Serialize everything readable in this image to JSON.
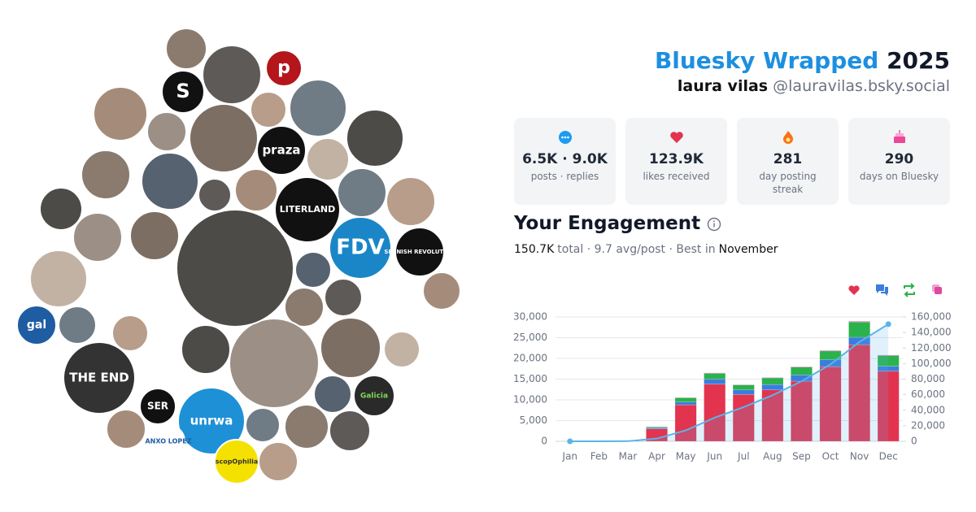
{
  "header": {
    "title": "Bluesky Wrapped",
    "year": "2025",
    "name": "laura vilas",
    "handle": "@lauravilas.bsky.social"
  },
  "stats": [
    {
      "value": "6.5K · 9.0K",
      "label": "posts · replies"
    },
    {
      "value": "123.9K",
      "label": "likes received"
    },
    {
      "value": "281",
      "label": "day posting streak"
    },
    {
      "value": "290",
      "label": "days on Bluesky"
    }
  ],
  "engagement": {
    "title": "Your Engagement",
    "subtitle": [
      "150.7K",
      "total · 9.7 avg/post · Best in",
      "November"
    ]
  },
  "avatar_labels": [
    "S",
    "p",
    "praza",
    "LITERLAND",
    "FDV",
    "SPANISH REVOLUTION",
    "gal",
    "THE END",
    "SER",
    "unrwa",
    "ANXO LOPEZ",
    "Galicia",
    "scopOphilia"
  ],
  "chart_data": {
    "type": "bar",
    "categories": [
      "Jan",
      "Feb",
      "Mar",
      "Apr",
      "May",
      "Jun",
      "Jul",
      "Aug",
      "Sep",
      "Oct",
      "Nov",
      "Dec"
    ],
    "series": [
      {
        "color": "#e2344f",
        "values": [
          0,
          0,
          150,
          3000,
          8800,
          13800,
          11300,
          12400,
          14500,
          18000,
          23300,
          16900
        ]
      },
      {
        "color": "#3b7ddd",
        "values": [
          0,
          0,
          30,
          300,
          700,
          1200,
          1100,
          1300,
          1500,
          1700,
          1800,
          1200
        ]
      },
      {
        "color": "#2bb24c",
        "values": [
          0,
          0,
          20,
          200,
          1000,
          1400,
          1200,
          1600,
          1900,
          2100,
          3700,
          2600
        ]
      },
      {
        "color": "#e0479e",
        "values": [
          0,
          0,
          0,
          20,
          60,
          100,
          80,
          90,
          110,
          130,
          150,
          110
        ]
      },
      {
        "type": "line",
        "axis": "y2",
        "color": "#5ab4ea",
        "values": [
          0,
          0,
          200,
          3500,
          14000,
          30400,
          44000,
          59300,
          77200,
          99000,
          127800,
          150700
        ]
      }
    ],
    "ylim": [
      0,
      30000
    ],
    "yticks": [
      0,
      {
        "value": 5000,
        "label": "5,000"
      },
      {
        "value": 10000,
        "label": "10,000"
      },
      {
        "value": 15000,
        "label": "15,000"
      },
      {
        "value": 20000,
        "label": "20,000"
      },
      {
        "value": 25000,
        "label": "25,000"
      },
      {
        "value": 30000,
        "label": "30,000"
      }
    ],
    "y2lim": [
      0,
      160000
    ],
    "y2ticks": [
      0,
      {
        "value": 20000,
        "label": "20,000"
      },
      {
        "value": 40000,
        "label": "40,000"
      },
      {
        "value": 60000,
        "label": "60,000"
      },
      {
        "value": 80000,
        "label": "80,000"
      },
      {
        "value": 100000,
        "label": "100,000"
      },
      {
        "value": 120000,
        "label": "120,000"
      },
      {
        "value": 140000,
        "label": "140,000"
      },
      {
        "value": 160000,
        "label": "160,000"
      }
    ],
    "grid": true,
    "stacked": true
  }
}
